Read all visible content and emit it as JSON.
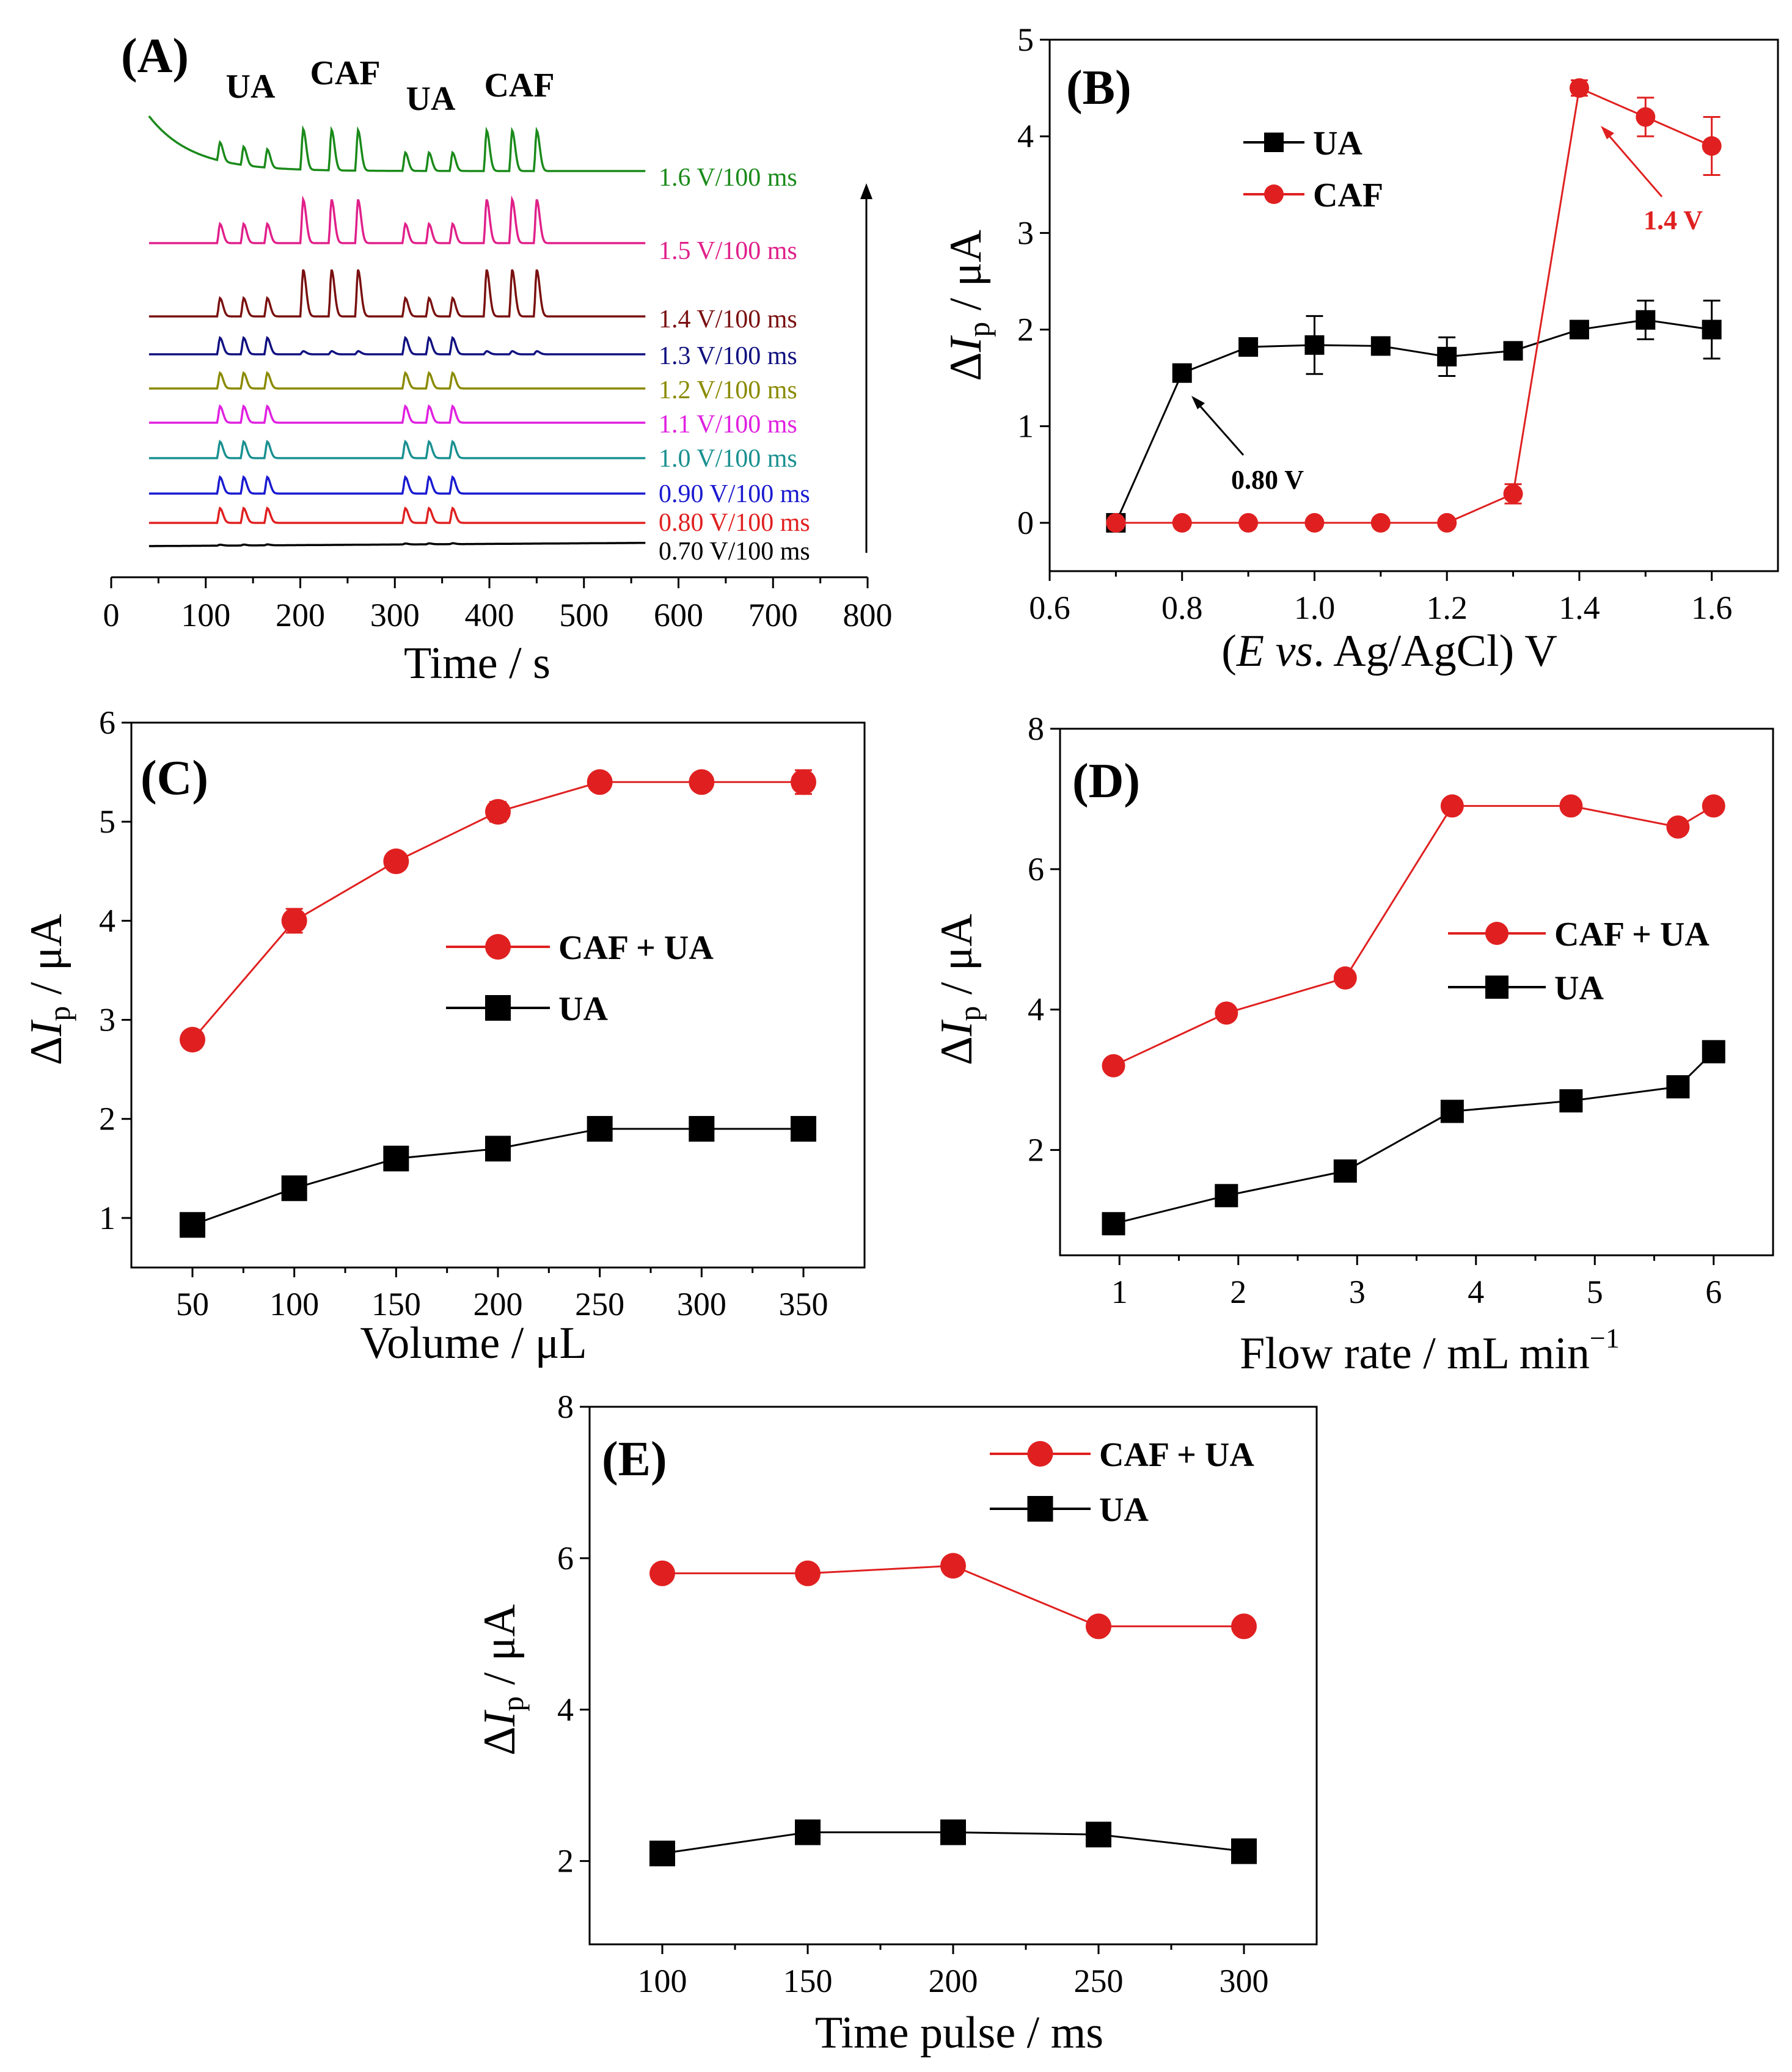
{
  "chart_data": [
    {
      "panel": "(A)",
      "type": "line",
      "xlabel": "Time / s",
      "xlim": [
        0,
        800
      ],
      "xticks": [
        "0",
        "100",
        "200",
        "300",
        "400",
        "500",
        "600",
        "700",
        "800"
      ],
      "peak_labels": [
        "UA",
        "CAF",
        "UA",
        "CAF"
      ],
      "peak_groups": [
        {
          "analyte": "UA",
          "times": [
            115,
            140,
            165
          ]
        },
        {
          "analyte": "CAF",
          "times": [
            203,
            233,
            261
          ]
        },
        {
          "analyte": "UA",
          "times": [
            311,
            336,
            361
          ]
        },
        {
          "analyte": "CAF",
          "times": [
            397,
            424,
            450
          ]
        }
      ],
      "traces": [
        {
          "label": "0.70 V/100 ms",
          "color": "#000000",
          "ua": 0.1,
          "caf": 0.0
        },
        {
          "label": "0.80 V/100 ms",
          "color": "#e02020",
          "ua": 1.6,
          "caf": 0.0
        },
        {
          "label": "0.90 V/100 ms",
          "color": "#1a1ad0",
          "ua": 1.8,
          "caf": 0.0
        },
        {
          "label": "1.0 V/100 ms",
          "color": "#1a9090",
          "ua": 1.8,
          "caf": 0.0
        },
        {
          "label": "1.1 V/100 ms",
          "color": "#e020e0",
          "ua": 1.8,
          "caf": 0.0
        },
        {
          "label": "1.2 V/100 ms",
          "color": "#8a8a00",
          "ua": 1.7,
          "caf": 0.0
        },
        {
          "label": "1.3 V/100 ms",
          "color": "#101080",
          "ua": 1.8,
          "caf": 0.3
        },
        {
          "label": "1.4 V/100 ms",
          "color": "#7a1010",
          "ua": 2.0,
          "caf": 4.5
        },
        {
          "label": "1.5 V/100 ms",
          "color": "#e0208a",
          "ua": 2.1,
          "caf": 4.2
        },
        {
          "label": "1.6 V/100 ms",
          "color": "#1a8a1a",
          "ua": 2.0,
          "caf": 3.9
        }
      ]
    },
    {
      "panel": "(B)",
      "type": "line",
      "xlabel_parts": [
        "(",
        "E",
        " vs",
        ". Ag/AgCl) V"
      ],
      "ylabel": "ΔIp / μA",
      "xlim": [
        0.6,
        1.7
      ],
      "ylim": [
        -0.5,
        5
      ],
      "xticks": [
        0.6,
        0.8,
        1.0,
        1.2,
        1.4,
        1.6
      ],
      "xtick_labels": [
        "0.6",
        "0.8",
        "1.0",
        "1.2",
        "1.4",
        "1.6"
      ],
      "yticks": [
        0,
        1,
        2,
        3,
        4,
        5
      ],
      "ytick_labels": [
        "0",
        "1",
        "2",
        "3",
        "4",
        "5"
      ],
      "legend": "top-left",
      "annotations": [
        {
          "text": "0.80 V",
          "color": "#000000"
        },
        {
          "text": "1.4 V",
          "color": "#e02020"
        }
      ],
      "series": [
        {
          "name": "UA",
          "marker": "square",
          "color": "#000000",
          "x": [
            0.7,
            0.8,
            0.9,
            1.0,
            1.1,
            1.2,
            1.3,
            1.4,
            1.5,
            1.6
          ],
          "y": [
            0,
            1.55,
            1.82,
            1.84,
            1.83,
            1.72,
            1.78,
            2.0,
            2.1,
            2.0
          ],
          "err": [
            0,
            0,
            0.06,
            0.3,
            0.05,
            0.2,
            0.05,
            0.06,
            0.2,
            0.3
          ]
        },
        {
          "name": "CAF",
          "marker": "circle",
          "color": "#e02020",
          "x": [
            0.7,
            0.8,
            0.9,
            1.0,
            1.1,
            1.2,
            1.3,
            1.4,
            1.5,
            1.6
          ],
          "y": [
            0,
            0,
            0,
            0,
            0,
            0,
            0.3,
            4.5,
            4.2,
            3.9
          ],
          "err": [
            0,
            0,
            0,
            0,
            0,
            0,
            0.1,
            0.08,
            0.2,
            0.3
          ]
        }
      ]
    },
    {
      "panel": "(C)",
      "type": "line",
      "xlabel": "Volume / μL",
      "ylabel": "ΔIp / μA",
      "xlim": [
        20,
        380
      ],
      "ylim": [
        0.5,
        6
      ],
      "xticks": [
        50,
        100,
        150,
        200,
        250,
        300,
        350
      ],
      "xtick_labels": [
        "50",
        "100",
        "150",
        "200",
        "250",
        "300",
        "350"
      ],
      "yticks": [
        1,
        2,
        3,
        4,
        5,
        6
      ],
      "ytick_labels": [
        "1",
        "2",
        "3",
        "4",
        "5",
        "6"
      ],
      "legend": "center-right",
      "series": [
        {
          "name": "CAF + UA",
          "marker": "circle",
          "color": "#e02020",
          "x": [
            50,
            100,
            150,
            200,
            250,
            300,
            350
          ],
          "y": [
            2.8,
            4.0,
            4.6,
            5.1,
            5.4,
            5.4,
            5.4
          ],
          "err": [
            0,
            0.12,
            0.05,
            0.1,
            0,
            0,
            0.12
          ]
        },
        {
          "name": "UA",
          "marker": "square",
          "color": "#000000",
          "x": [
            50,
            100,
            150,
            200,
            250,
            300,
            350
          ],
          "y": [
            0.93,
            1.3,
            1.6,
            1.7,
            1.9,
            1.9,
            1.9
          ],
          "err": [
            0.1,
            0,
            0,
            0,
            0,
            0,
            0
          ]
        }
      ]
    },
    {
      "panel": "(D)",
      "type": "line",
      "xlabel": "Flow rate / mL min",
      "xlabel_sup": "−1",
      "ylabel": "ΔIp / μA",
      "xlim": [
        0.5,
        6.5
      ],
      "ylim": [
        0.5,
        8
      ],
      "xticks": [
        1,
        2,
        3,
        4,
        5,
        6
      ],
      "xtick_labels": [
        "1",
        "2",
        "3",
        "4",
        "5",
        "6"
      ],
      "yticks": [
        2,
        4,
        6,
        8
      ],
      "ytick_labels": [
        "2",
        "4",
        "6",
        "8"
      ],
      "legend": "center-right",
      "series": [
        {
          "name": "CAF + UA",
          "marker": "circle",
          "color": "#e02020",
          "x": [
            0.95,
            1.9,
            2.9,
            3.8,
            4.8,
            5.7,
            6.0
          ],
          "y": [
            3.2,
            3.95,
            4.45,
            6.9,
            6.9,
            6.6,
            6.9
          ]
        },
        {
          "name": "UA",
          "marker": "square",
          "color": "#000000",
          "x": [
            0.95,
            1.9,
            2.9,
            3.8,
            4.8,
            5.7,
            6.0
          ],
          "y": [
            0.95,
            1.35,
            1.7,
            2.55,
            2.7,
            2.9,
            3.4
          ]
        }
      ]
    },
    {
      "panel": "(E)",
      "type": "line",
      "xlabel": "Time pulse / ms",
      "ylabel": "ΔIp / μA",
      "xlim": [
        75,
        325
      ],
      "ylim": [
        0.9,
        8
      ],
      "xticks": [
        100,
        150,
        200,
        250,
        300
      ],
      "xtick_labels": [
        "100",
        "150",
        "200",
        "250",
        "300"
      ],
      "yticks": [
        2,
        4,
        6,
        8
      ],
      "ytick_labels": [
        "2",
        "4",
        "6",
        "8"
      ],
      "legend": "top-right",
      "series": [
        {
          "name": "CAF + UA",
          "marker": "circle",
          "color": "#e02020",
          "x": [
            100,
            150,
            200,
            250,
            300
          ],
          "y": [
            5.8,
            5.8,
            5.9,
            5.1,
            5.1
          ]
        },
        {
          "name": "UA",
          "marker": "square",
          "color": "#000000",
          "x": [
            100,
            150,
            200,
            250,
            300
          ],
          "y": [
            2.1,
            2.38,
            2.38,
            2.35,
            2.13
          ]
        }
      ]
    }
  ]
}
